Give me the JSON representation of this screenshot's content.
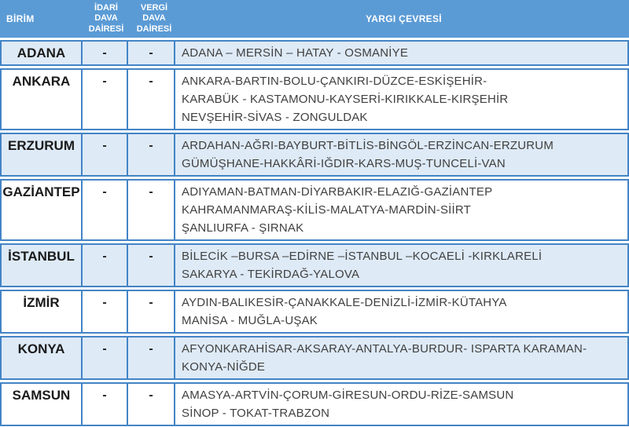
{
  "colors": {
    "header_bg": "#5B9BD5",
    "row_alt_bg": "#DEEAF6",
    "row_bg": "#FFFFFF",
    "border": "#4384C6",
    "header_text": "#FFFFFF",
    "label_text": "#1A1A1A",
    "content_text": "#404040"
  },
  "header": {
    "birim": "BİRİM",
    "idari_lines": [
      "İDARİ",
      "DAVA",
      "DAİRESİ"
    ],
    "vergi_lines": [
      "VERGİ",
      "DAVA",
      "DAİRESİ"
    ],
    "yargi": "YARGI ÇEVRESİ"
  },
  "rows": [
    {
      "birim": "ADANA",
      "idari": "-",
      "vergi": "-",
      "yargi": [
        "ADANA  – MERSİN  – HATAY  -  OSMANİYE"
      ]
    },
    {
      "birim": "ANKARA",
      "idari": "-",
      "vergi": "-",
      "yargi": [
        "ANKARA-BARTIN-BOLU-ÇANKIRI-DÜZCE-ESKİŞEHİR-",
        "KARABÜK - KASTAMONU-KAYSERİ-KIRIKKALE-KIRŞEHİR",
        "NEVŞEHİR-SİVAS - ZONGULDAK"
      ]
    },
    {
      "birim": "ERZURUM",
      "idari": "-",
      "vergi": "-",
      "yargi": [
        "ARDAHAN-AĞRI-BAYBURT-BİTLİS-BİNGÖL-ERZİNCAN-ERZURUM",
        "GÜMÜŞHANE-HAKKÂRİ-IĞDIR-KARS-MUŞ-TUNCELİ-VAN"
      ]
    },
    {
      "birim": "GAZİANTEP",
      "idari": "-",
      "vergi": "-",
      "yargi": [
        "ADIYAMAN-BATMAN-DİYARBAKIR-ELAZIĞ-GAZİANTEP",
        "KAHRAMANMARAŞ-KİLİS-MALATYA-MARDİN-SİİRT",
        "ŞANLIURFA - ŞIRNAK"
      ]
    },
    {
      "birim": "İSTANBUL",
      "idari": "-",
      "vergi": "-",
      "yargi": [
        "BİLECİK –BURSA –EDİRNE –İSTANBUL –KOCAELİ -KIRKLARELİ",
        "SAKARYA - TEKİRDAĞ-YALOVA"
      ]
    },
    {
      "birim": "İZMİR",
      "idari": "-",
      "vergi": "-",
      "yargi": [
        "AYDIN-BALIKESİR-ÇANAKKALE-DENİZLİ-İZMİR-KÜTAHYA",
        "MANİSA - MUĞLA-UŞAK"
      ]
    },
    {
      "birim": "KONYA",
      "idari": "-",
      "vergi": "-",
      "yargi": [
        "AFYONKARAHİSAR-AKSARAY-ANTALYA-BURDUR- ISPARTA KARAMAN-",
        "KONYA-NİĞDE"
      ]
    },
    {
      "birim": "SAMSUN",
      "idari": "-",
      "vergi": "-",
      "yargi": [
        "AMASYA-ARTVİN-ÇORUM-GİRESUN-ORDU-RİZE-SAMSUN",
        "SİNOP - TOKAT-TRABZON"
      ]
    }
  ]
}
